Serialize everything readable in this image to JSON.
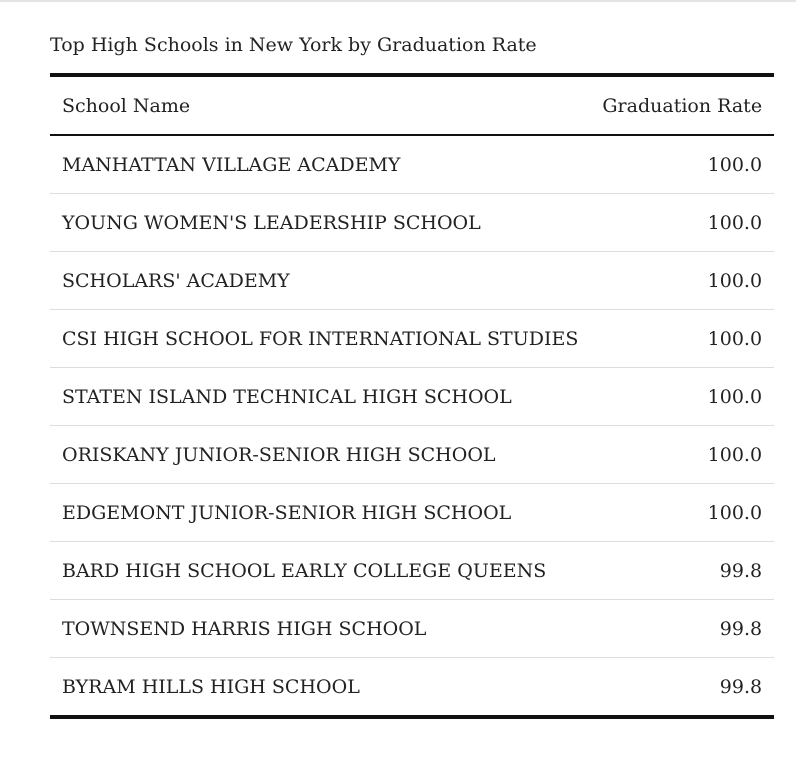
{
  "table": {
    "caption": "Top High Schools in New York by Graduation Rate",
    "columns": [
      "School Name",
      "Graduation Rate"
    ],
    "rows": [
      [
        "MANHATTAN VILLAGE ACADEMY",
        "100.0"
      ],
      [
        "YOUNG WOMEN'S LEADERSHIP SCHOOL",
        "100.0"
      ],
      [
        "SCHOLARS' ACADEMY",
        "100.0"
      ],
      [
        "CSI HIGH SCHOOL FOR INTERNATIONAL STUDIES",
        "100.0"
      ],
      [
        "STATEN ISLAND TECHNICAL HIGH SCHOOL",
        "100.0"
      ],
      [
        "ORISKANY JUNIOR-SENIOR HIGH SCHOOL",
        "100.0"
      ],
      [
        "EDGEMONT JUNIOR-SENIOR HIGH SCHOOL",
        "100.0"
      ],
      [
        "BARD HIGH SCHOOL EARLY COLLEGE QUEENS",
        "99.8"
      ],
      [
        "TOWNSEND HARRIS HIGH SCHOOL",
        "99.8"
      ],
      [
        "BYRAM HILLS HIGH SCHOOL",
        "99.8"
      ]
    ]
  }
}
